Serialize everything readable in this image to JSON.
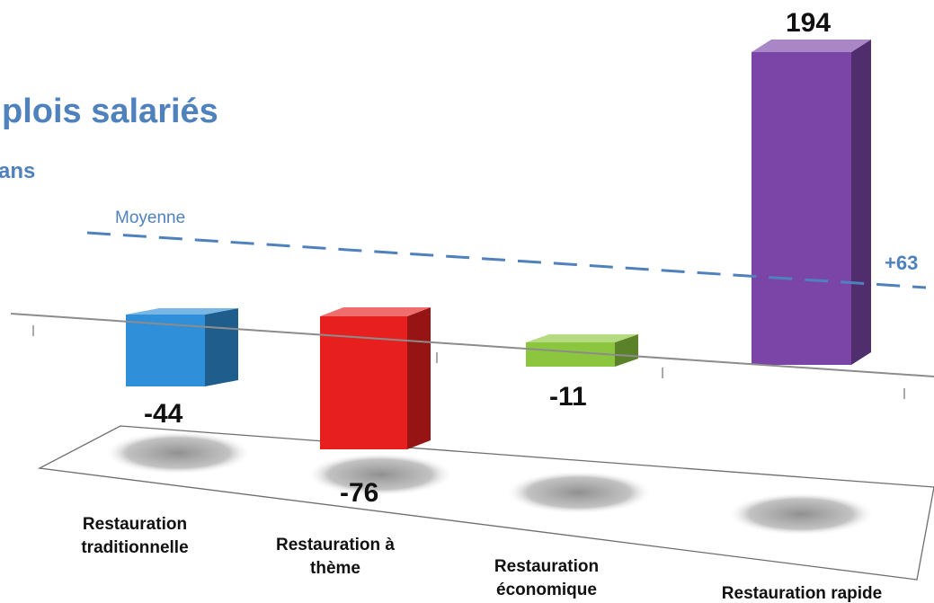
{
  "chart_data": {
    "type": "bar",
    "title": "plois salariés",
    "subtitle": "ans",
    "categories": [
      [
        "Restauration",
        "traditionnelle"
      ],
      [
        "Restauration à",
        "thème"
      ],
      [
        "Restauration",
        "économique"
      ],
      [
        "Restauration rapide"
      ]
    ],
    "values": [
      -44,
      -76,
      -11,
      194
    ],
    "value_labels": [
      "-44",
      "-76",
      "-11",
      "194"
    ],
    "colors": [
      "#2f8fd8",
      "#e81f1f",
      "#8cc63f",
      "#7b45a8"
    ],
    "reference_line": {
      "label": "Moyenne",
      "value_label": "+63",
      "value": 63,
      "color": "#4f81bd"
    }
  }
}
